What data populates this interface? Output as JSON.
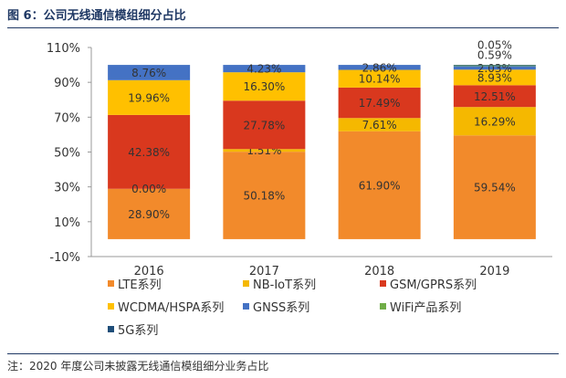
{
  "figure": {
    "title": "图 6：公司无线通信模组细分占比",
    "note": "注：2020 年度公司未披露无线通信模组细分业务占比"
  },
  "chart_data": {
    "type": "bar",
    "stacked": true,
    "categories": [
      "2016",
      "2017",
      "2018",
      "2019"
    ],
    "yticks": [
      "110%",
      "90%",
      "70%",
      "50%",
      "30%",
      "10%",
      "-10%"
    ],
    "ylim": [
      -10,
      110
    ],
    "series": [
      {
        "name": "LTE系列",
        "color": "#f28a2b",
        "values": [
          28.9,
          50.18,
          61.9,
          59.54
        ],
        "labels": [
          "28.90%",
          "50.18%",
          "61.90%",
          "59.54%"
        ]
      },
      {
        "name": "NB-IoT系列",
        "color": "#f5b800",
        "values": [
          0,
          1.51,
          7.61,
          16.29
        ],
        "labels": [
          "",
          "1.51%",
          "7.61%",
          "16.29%"
        ]
      },
      {
        "name": "GSM/GPRS系列",
        "color": "#d9381e",
        "values": [
          42.38,
          27.78,
          17.49,
          12.51
        ],
        "labels": [
          "42.38%",
          "27.78%",
          "17.49%",
          "12.51%"
        ]
      },
      {
        "name": "WCDMA/HSPA系列",
        "color": "#ffc000",
        "values": [
          19.96,
          16.3,
          10.14,
          8.93
        ],
        "labels": [
          "19.96%",
          "16.30%",
          "10.14%",
          "8.93%"
        ]
      },
      {
        "name": "GNSS系列",
        "color": "#4472c4",
        "values": [
          8.76,
          4.23,
          2.86,
          2.03
        ],
        "labels": [
          "8.76%",
          "4.23%",
          "2.86%",
          "2.03%"
        ]
      },
      {
        "name": "WiFi产品系列",
        "color": "#70ad47",
        "values": [
          0,
          0,
          0,
          0.59
        ],
        "labels": [
          "",
          "",
          "",
          "0.59%"
        ]
      },
      {
        "name": "5G系列",
        "color": "#1f4e79",
        "values": [
          0,
          0,
          0,
          0.05
        ],
        "labels": [
          "",
          "",
          "",
          "0.05%"
        ]
      }
    ],
    "extra_labels": [
      {
        "category": "2016",
        "series": "NB-IoT系列",
        "text": "0.00%"
      }
    ]
  }
}
